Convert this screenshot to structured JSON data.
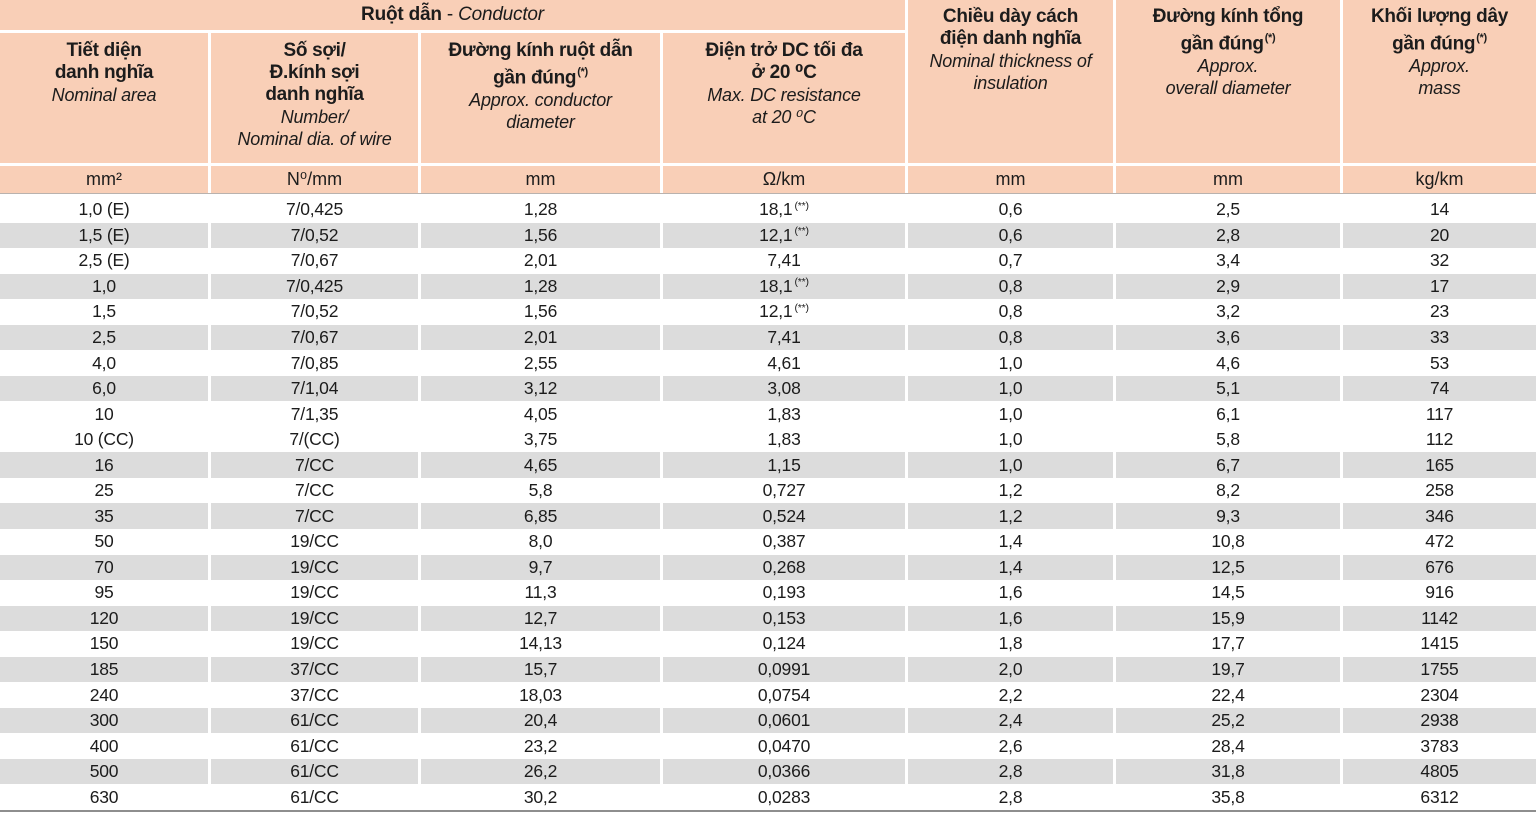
{
  "colors": {
    "header_bg": "#f9cfb7",
    "stripe_bg": "#dcdcdc",
    "separator": "#ffffff",
    "text": "#1c1c1c",
    "bottom_border": "#8e8e8e"
  },
  "group_header": {
    "title_bold": "Ruột dẫn",
    "separator": " - ",
    "title_italic": "Conductor"
  },
  "columns": [
    {
      "id": "nominal-area",
      "vi": [
        "Tiết diện",
        "danh nghĩa"
      ],
      "sup": "",
      "en": [
        "Nominal area"
      ],
      "unit": "mm²",
      "span_full": false
    },
    {
      "id": "number-wire-dia",
      "vi": [
        "Số sợi/",
        "Đ.kính sợi",
        "danh nghĩa"
      ],
      "sup": "",
      "en": [
        "Number/",
        "Nominal dia. of wire"
      ],
      "unit": "N⁰/mm",
      "span_full": false
    },
    {
      "id": "conductor-diameter",
      "vi": [
        "Đường kính ruột dẫn",
        "gần đúng"
      ],
      "sup": "(*)",
      "en": [
        "Approx. conductor",
        "diameter"
      ],
      "unit": "mm",
      "span_full": false
    },
    {
      "id": "dc-resistance",
      "vi": [
        "Điện trở DC tối đa",
        "ở 20 ⁰C"
      ],
      "sup": "",
      "en": [
        "Max. DC resistance",
        "at 20 ⁰C"
      ],
      "unit": "Ω/km",
      "span_full": false
    },
    {
      "id": "insulation-thickness",
      "vi": [
        "Chiều dày cách",
        "điện danh nghĩa"
      ],
      "sup": "",
      "en": [
        "Nominal thickness of",
        "insulation"
      ],
      "unit": "mm",
      "span_full": true
    },
    {
      "id": "overall-diameter",
      "vi": [
        "Đường kính tổng",
        "gần đúng"
      ],
      "sup": "(*)",
      "en": [
        "Approx.",
        "overall diameter"
      ],
      "unit": "mm",
      "span_full": true
    },
    {
      "id": "mass",
      "vi": [
        "Khối lượng dây",
        "gần đúng"
      ],
      "sup": "(*)",
      "en": [
        "Approx.",
        "mass"
      ],
      "unit": "kg/km",
      "span_full": true
    }
  ],
  "rows": [
    {
      "shaded": false,
      "resistance_sup": "(**)",
      "cells": [
        "1,0 (E)",
        "7/0,425",
        "1,28",
        "18,1",
        "0,6",
        "2,5",
        "14"
      ]
    },
    {
      "shaded": true,
      "resistance_sup": "(**)",
      "cells": [
        "1,5 (E)",
        "7/0,52",
        "1,56",
        "12,1",
        "0,6",
        "2,8",
        "20"
      ]
    },
    {
      "shaded": false,
      "resistance_sup": "",
      "cells": [
        "2,5 (E)",
        "7/0,67",
        "2,01",
        "7,41",
        "0,7",
        "3,4",
        "32"
      ]
    },
    {
      "shaded": true,
      "resistance_sup": "(**)",
      "cells": [
        "1,0",
        "7/0,425",
        "1,28",
        "18,1",
        "0,8",
        "2,9",
        "17"
      ]
    },
    {
      "shaded": false,
      "resistance_sup": "(**)",
      "cells": [
        "1,5",
        "7/0,52",
        "1,56",
        "12,1",
        "0,8",
        "3,2",
        "23"
      ]
    },
    {
      "shaded": true,
      "resistance_sup": "",
      "cells": [
        "2,5",
        "7/0,67",
        "2,01",
        "7,41",
        "0,8",
        "3,6",
        "33"
      ]
    },
    {
      "shaded": false,
      "resistance_sup": "",
      "cells": [
        "4,0",
        "7/0,85",
        "2,55",
        "4,61",
        "1,0",
        "4,6",
        "53"
      ]
    },
    {
      "shaded": true,
      "resistance_sup": "",
      "cells": [
        "6,0",
        "7/1,04",
        "3,12",
        "3,08",
        "1,0",
        "5,1",
        "74"
      ]
    },
    {
      "shaded": false,
      "resistance_sup": "",
      "cells": [
        "10",
        "7/1,35",
        "4,05",
        "1,83",
        "1,0",
        "6,1",
        "117"
      ]
    },
    {
      "shaded": false,
      "resistance_sup": "",
      "cells": [
        "10 (CC)",
        "7/(CC)",
        "3,75",
        "1,83",
        "1,0",
        "5,8",
        "112"
      ]
    },
    {
      "shaded": true,
      "resistance_sup": "",
      "cells": [
        "16",
        "7/CC",
        "4,65",
        "1,15",
        "1,0",
        "6,7",
        "165"
      ]
    },
    {
      "shaded": false,
      "resistance_sup": "",
      "cells": [
        "25",
        "7/CC",
        "5,8",
        "0,727",
        "1,2",
        "8,2",
        "258"
      ]
    },
    {
      "shaded": true,
      "resistance_sup": "",
      "cells": [
        "35",
        "7/CC",
        "6,85",
        "0,524",
        "1,2",
        "9,3",
        "346"
      ]
    },
    {
      "shaded": false,
      "resistance_sup": "",
      "cells": [
        "50",
        "19/CC",
        "8,0",
        "0,387",
        "1,4",
        "10,8",
        "472"
      ]
    },
    {
      "shaded": true,
      "resistance_sup": "",
      "cells": [
        "70",
        "19/CC",
        "9,7",
        "0,268",
        "1,4",
        "12,5",
        "676"
      ]
    },
    {
      "shaded": false,
      "resistance_sup": "",
      "cells": [
        "95",
        "19/CC",
        "11,3",
        "0,193",
        "1,6",
        "14,5",
        "916"
      ]
    },
    {
      "shaded": true,
      "resistance_sup": "",
      "cells": [
        "120",
        "19/CC",
        "12,7",
        "0,153",
        "1,6",
        "15,9",
        "1142"
      ]
    },
    {
      "shaded": false,
      "resistance_sup": "",
      "cells": [
        "150",
        "19/CC",
        "14,13",
        "0,124",
        "1,8",
        "17,7",
        "1415"
      ]
    },
    {
      "shaded": true,
      "resistance_sup": "",
      "cells": [
        "185",
        "37/CC",
        "15,7",
        "0,0991",
        "2,0",
        "19,7",
        "1755"
      ]
    },
    {
      "shaded": false,
      "resistance_sup": "",
      "cells": [
        "240",
        "37/CC",
        "18,03",
        "0,0754",
        "2,2",
        "22,4",
        "2304"
      ]
    },
    {
      "shaded": true,
      "resistance_sup": "",
      "cells": [
        "300",
        "61/CC",
        "20,4",
        "0,0601",
        "2,4",
        "25,2",
        "2938"
      ]
    },
    {
      "shaded": false,
      "resistance_sup": "",
      "cells": [
        "400",
        "61/CC",
        "23,2",
        "0,0470",
        "2,6",
        "28,4",
        "3783"
      ]
    },
    {
      "shaded": true,
      "resistance_sup": "",
      "cells": [
        "500",
        "61/CC",
        "26,2",
        "0,0366",
        "2,8",
        "31,8",
        "4805"
      ]
    },
    {
      "shaded": false,
      "resistance_sup": "",
      "cells": [
        "630",
        "61/CC",
        "30,2",
        "0,0283",
        "2,8",
        "35,8",
        "6312"
      ]
    }
  ]
}
